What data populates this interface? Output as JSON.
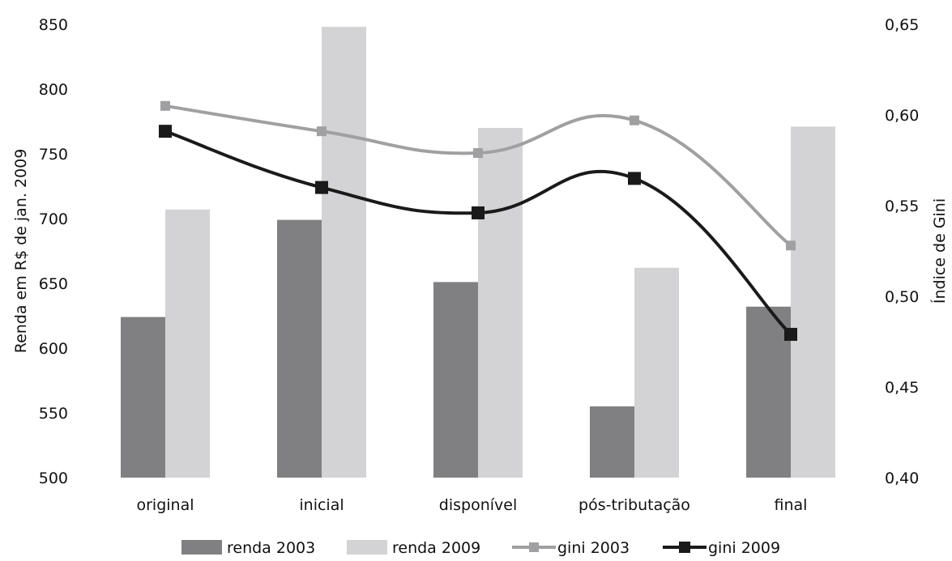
{
  "chart_data": {
    "type": "bar",
    "categories": [
      "original",
      "inicial",
      "disponível",
      "pós-tributação",
      "final"
    ],
    "series": [
      {
        "name": "renda 2003",
        "kind": "bar",
        "axis": "left",
        "color": "#808083",
        "values": [
          624,
          699,
          651,
          555,
          632
        ]
      },
      {
        "name": "renda 2009",
        "kind": "bar",
        "axis": "left",
        "color": "#d3d3d5",
        "values": [
          707,
          848,
          770,
          662,
          771
        ]
      },
      {
        "name": "gini 2003",
        "kind": "line",
        "axis": "right",
        "color": "#a0a0a3",
        "marker": "square",
        "values": [
          0.605,
          0.591,
          0.579,
          0.597,
          0.528
        ]
      },
      {
        "name": "gini 2009",
        "kind": "line",
        "axis": "right",
        "color": "#1a1a1a",
        "marker": "square",
        "values": [
          0.591,
          0.56,
          0.546,
          0.565,
          0.479
        ]
      }
    ],
    "ylabel": "Renda em R$ de jan. 2009",
    "y2label": "Índice de Gini",
    "ylim": [
      500,
      850
    ],
    "yticks": [
      500,
      550,
      600,
      650,
      700,
      750,
      800,
      850
    ],
    "y2lim": [
      0.4,
      0.65
    ],
    "y2ticks": [
      "0,40",
      "0,45",
      "0,50",
      "0,55",
      "0,60",
      "0,65"
    ],
    "grid": false,
    "legend_position": "bottom"
  }
}
